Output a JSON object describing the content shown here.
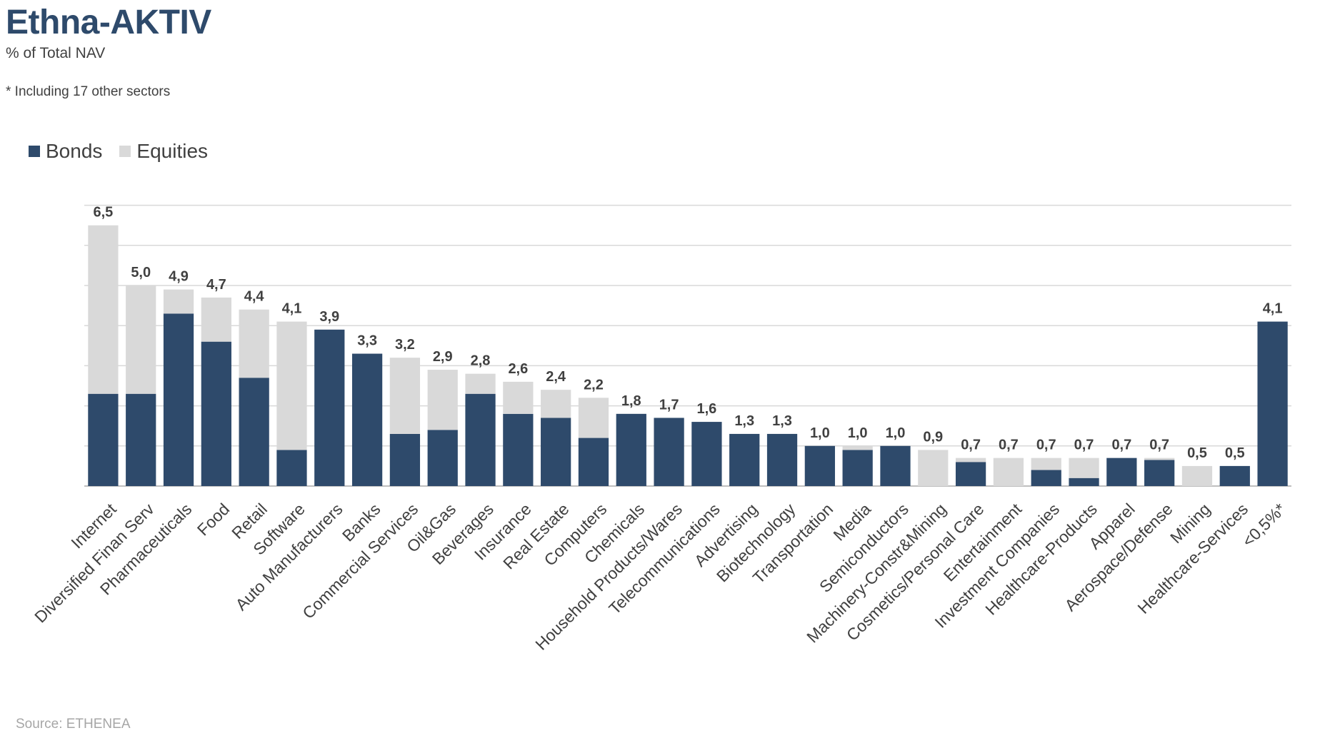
{
  "header": {
    "title": "Ethna-AKTIV",
    "subtitle": "% of Total NAV",
    "footnote": "* Including 17 other sectors"
  },
  "source": "Source: ETHENEA",
  "colors": {
    "bonds": "#2e4a6b",
    "equities": "#d9d9d9",
    "title": "#2e4a6b",
    "gridline": "#d9d9d9",
    "label": "#404040"
  },
  "chart_data": {
    "type": "bar",
    "stacked": true,
    "grid": true,
    "legend_position": "top-left",
    "ylim": [
      0,
      7
    ],
    "yticks": [
      0,
      1,
      2,
      3,
      4,
      5,
      6,
      7
    ],
    "categories": [
      "Internet",
      "Diversified Finan Serv",
      "Pharmaceuticals",
      "Food",
      "Retail",
      "Software",
      "Auto Manufacturers",
      "Banks",
      "Commercial Services",
      "Oil&Gas",
      "Beverages",
      "Insurance",
      "Real Estate",
      "Computers",
      "Chemicals",
      "Household Products/Wares",
      "Telecommunications",
      "Advertising",
      "Biotechnology",
      "Transportation",
      "Media",
      "Semiconductors",
      "Machinery-Constr&Mining",
      "Cosmetics/Personal Care",
      "Entertainment",
      "Investment Companies",
      "Healthcare-Products",
      "Apparel",
      "Aerospace/Defense",
      "Mining",
      "Healthcare-Services",
      "<0,5%*"
    ],
    "series": [
      {
        "name": "Bonds",
        "values": [
          2.3,
          2.3,
          4.3,
          3.6,
          2.7,
          0.9,
          3.9,
          3.3,
          1.3,
          1.4,
          2.3,
          1.8,
          1.7,
          1.2,
          1.8,
          1.7,
          1.6,
          1.3,
          1.3,
          1.0,
          0.9,
          1.0,
          0.0,
          0.6,
          0.0,
          0.4,
          0.2,
          0.7,
          0.65,
          0.0,
          0.5,
          4.1
        ]
      },
      {
        "name": "Equities",
        "values": [
          4.2,
          2.7,
          0.6,
          1.1,
          1.7,
          3.2,
          0.0,
          0.0,
          1.9,
          1.5,
          0.5,
          0.8,
          0.7,
          1.0,
          0.0,
          0.0,
          0.0,
          0.0,
          0.0,
          0.0,
          0.1,
          0.0,
          0.9,
          0.1,
          0.7,
          0.3,
          0.5,
          0.0,
          0.05,
          0.5,
          0.0,
          0.0
        ]
      }
    ],
    "totals": [
      "6,5",
      "5,0",
      "4,9",
      "4,7",
      "4,4",
      "4,1",
      "3,9",
      "3,3",
      "3,2",
      "2,9",
      "2,8",
      "2,6",
      "2,4",
      "2,2",
      "1,8",
      "1,7",
      "1,6",
      "1,3",
      "1,3",
      "1,0",
      "1,0",
      "1,0",
      "0,9",
      "0,7",
      "0,7",
      "0,7",
      "0,7",
      "0,7",
      "0,7",
      "0,5",
      "0,5",
      "4,1"
    ]
  }
}
